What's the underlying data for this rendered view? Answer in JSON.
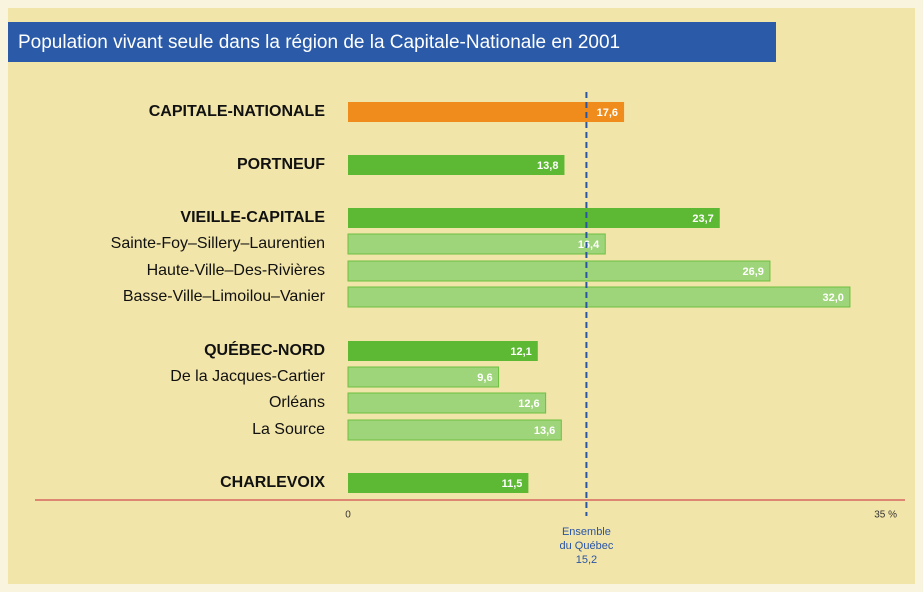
{
  "chart_data": {
    "type": "bar",
    "orientation": "horizontal",
    "title": "Population vivant seule dans la région de la Capitale-Nationale en 2001",
    "categories": [
      "CAPITALE-NATIONALE",
      "PORTNEUF",
      "VIEILLE-CAPITALE",
      "Sainte-Foy–Sillery–Laurentien",
      "Haute-Ville–Des-Rivières",
      "Basse-Ville–Limoilou–Vanier",
      "QUÉBEC-NORD",
      "De la Jacques-Cartier",
      "Orléans",
      "La Source",
      "CHARLEVOIX"
    ],
    "values": [
      17.6,
      13.8,
      23.7,
      16.4,
      26.9,
      32.0,
      12.1,
      9.6,
      12.6,
      13.6,
      11.5
    ],
    "value_labels": [
      "17,6",
      "13,8",
      "23,7",
      "16,4",
      "26,9",
      "32,0",
      "12,1",
      "9,6",
      "12,6",
      "13,6",
      "11,5"
    ],
    "colors": [
      "#ef8c1c",
      "#5db833",
      "#5db833",
      "#9fd57a",
      "#9fd57a",
      "#9fd57a",
      "#5db833",
      "#9fd57a",
      "#9fd57a",
      "#9fd57a",
      "#5db833"
    ],
    "xlim": [
      0,
      35
    ],
    "xticks": [
      0,
      {
        "value": 35,
        "label": "35 %"
      }
    ],
    "reference_line": {
      "label": [
        "Ensemble",
        "du Québec"
      ],
      "value": 15.2,
      "value_label": "15,2",
      "color": "#2a55a5"
    }
  }
}
